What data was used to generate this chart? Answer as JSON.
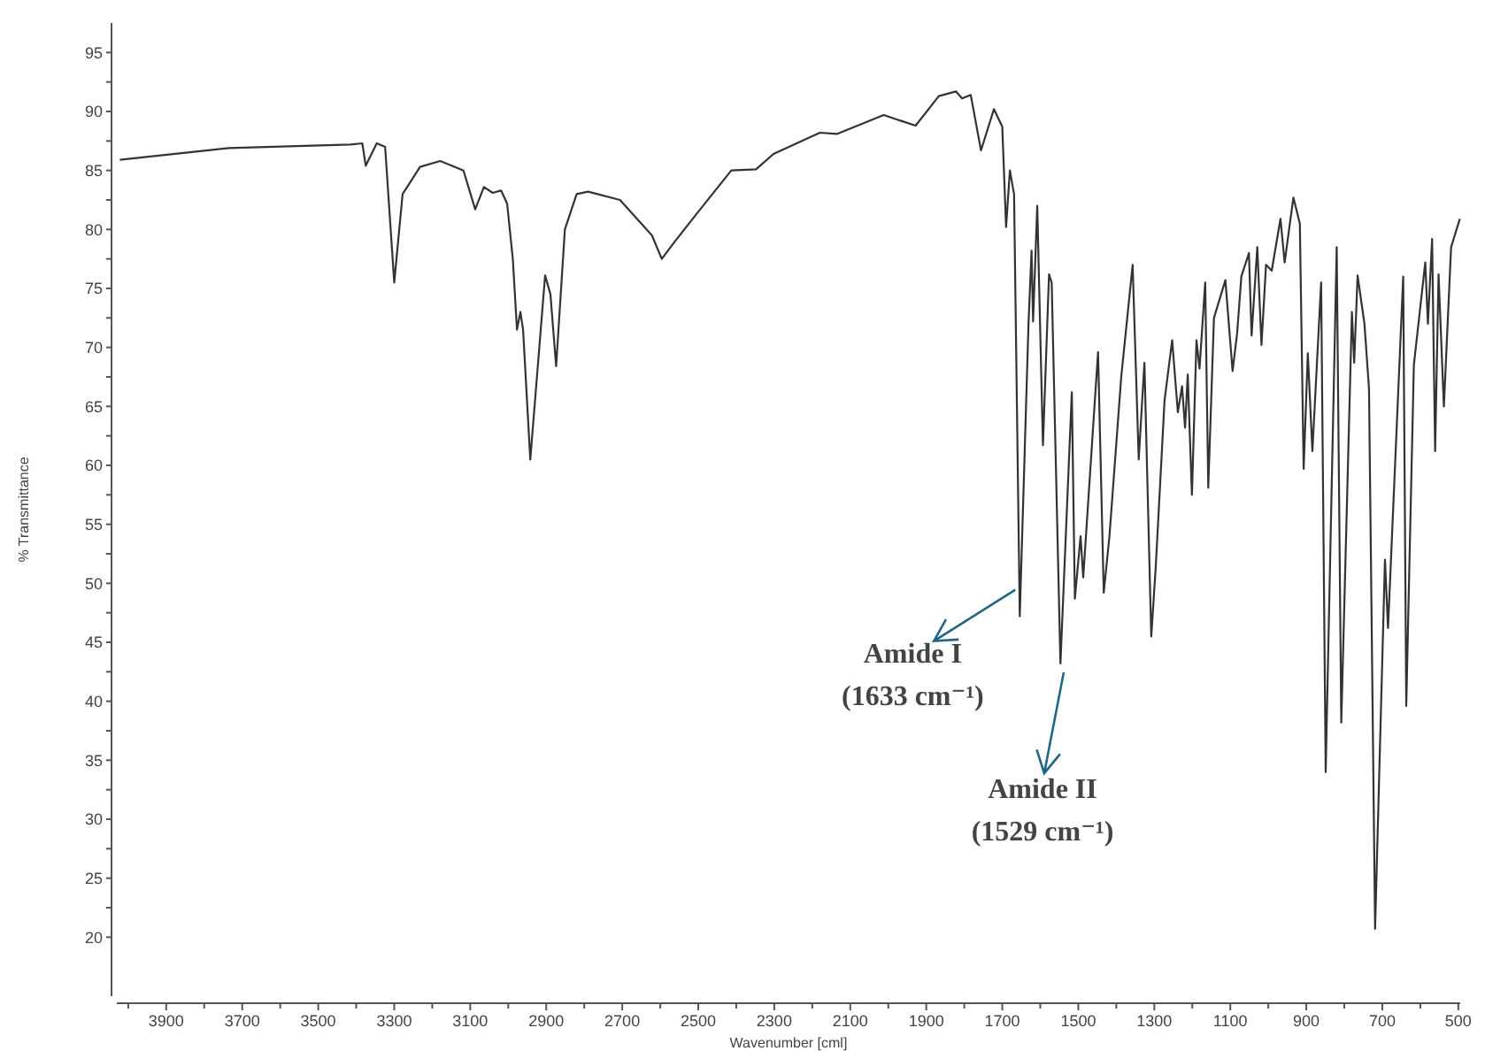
{
  "chart_data": {
    "type": "line",
    "xlabel": "Wavenumber [cml]",
    "ylabel": "% Transmittance",
    "xlim": [
      4030,
      495
    ],
    "ylim": [
      15,
      97.5
    ],
    "xticks": [
      {
        "value": 4000,
        "label": null
      },
      3900,
      {
        "value": 3800,
        "label": null
      },
      3700,
      {
        "value": 3600,
        "label": null
      },
      3500,
      {
        "value": 3400,
        "label": null
      },
      3300,
      {
        "value": 3200,
        "label": null
      },
      3100,
      {
        "value": 3000,
        "label": null
      },
      2900,
      {
        "value": 2800,
        "label": null
      },
      2700,
      {
        "value": 2600,
        "label": null
      },
      2500,
      {
        "value": 2400,
        "label": null
      },
      2300,
      {
        "value": 2200,
        "label": null
      },
      2100,
      {
        "value": 2000,
        "label": null
      },
      1900,
      {
        "value": 1800,
        "label": null
      },
      1700,
      {
        "value": 1600,
        "label": null
      },
      1500,
      {
        "value": 1400,
        "label": null
      },
      1300,
      {
        "value": 1200,
        "label": null
      },
      1100,
      {
        "value": 1000,
        "label": null
      },
      900,
      {
        "value": 800,
        "label": null
      },
      700,
      {
        "value": 600,
        "label": null
      },
      500
    ],
    "yticks": [
      20,
      25,
      30,
      35,
      40,
      45,
      50,
      55,
      60,
      65,
      70,
      75,
      80,
      85,
      90,
      95
    ],
    "grid": false,
    "marker": "none",
    "line_style": "solid",
    "series": [
      {
        "color": "#333333",
        "x": [
          4022,
          3735,
          3415,
          3384,
          3375,
          3346,
          3324,
          3300,
          3278,
          3232,
          3179,
          3118,
          3087,
          3064,
          3041,
          3019,
          3003,
          2988,
          2977,
          2968,
          2961,
          2942,
          2903,
          2889,
          2874,
          2851,
          2820,
          2790,
          2706,
          2622,
          2596,
          2561,
          2500,
          2413,
          2348,
          2302,
          2180,
          2134,
          2012,
          1966,
          1928,
          1867,
          1822,
          1806,
          1783,
          1756,
          1722,
          1700,
          1690,
          1680,
          1669,
          1654,
          1631,
          1623,
          1619,
          1608,
          1593,
          1577,
          1570,
          1547,
          1517,
          1509,
          1494,
          1487,
          1448,
          1433,
          1418,
          1387,
          1357,
          1341,
          1326,
          1308,
          1296,
          1273,
          1253,
          1238,
          1227,
          1219,
          1212,
          1201,
          1189,
          1181,
          1166,
          1158,
          1143,
          1113,
          1094,
          1082,
          1071,
          1051,
          1044,
          1029,
          1018,
          1006,
          991,
          968,
          957,
          934,
          917,
          907,
          896,
          884,
          861,
          849,
          820,
          808,
          780,
          774,
          765,
          747,
          735,
          719,
          693,
          685,
          645,
          637,
          617,
          587,
          580,
          569,
          561,
          552,
          538,
          519,
          496
        ],
        "values": [
          85.9,
          86.9,
          87.2,
          87.3,
          85.4,
          87.3,
          87.0,
          75.5,
          83.0,
          85.3,
          85.8,
          85.0,
          81.7,
          83.6,
          83.1,
          83.3,
          82.2,
          77.5,
          71.5,
          73.0,
          71.5,
          60.5,
          76.1,
          74.5,
          68.4,
          80.0,
          83.0,
          83.2,
          82.5,
          79.5,
          77.5,
          79.0,
          81.5,
          85.0,
          85.1,
          86.4,
          88.2,
          88.1,
          89.7,
          89.2,
          88.8,
          91.3,
          91.7,
          91.1,
          91.4,
          86.7,
          90.2,
          88.7,
          80.2,
          85.0,
          83.0,
          47.2,
          72.0,
          78.2,
          72.2,
          82.0,
          61.7,
          76.2,
          75.5,
          43.2,
          66.2,
          48.7,
          54.0,
          50.5,
          69.6,
          49.2,
          54.0,
          67.5,
          77.0,
          60.5,
          68.7,
          45.5,
          51.5,
          65.5,
          70.6,
          64.5,
          66.7,
          63.2,
          67.7,
          57.5,
          70.6,
          68.2,
          75.5,
          58.1,
          72.5,
          75.7,
          68.0,
          71.2,
          76.0,
          78.0,
          71.0,
          78.5,
          70.2,
          77.0,
          76.5,
          80.9,
          77.2,
          82.7,
          80.5,
          59.7,
          69.5,
          61.2,
          75.5,
          34.0,
          78.5,
          38.2,
          73.0,
          68.7,
          76.1,
          72.0,
          66.5,
          20.7,
          52.0,
          46.2,
          76.0,
          39.6,
          68.5,
          77.2,
          72.0,
          79.2,
          61.2,
          76.2,
          65.0,
          78.5,
          80.9
        ]
      }
    ],
    "annotations": [
      {
        "text": "Amide I (1633 cm⁻¹)",
        "x": 1633,
        "y": 47.2
      },
      {
        "text": "Amide II (1529 cm⁻¹)",
        "x": 1529,
        "y": 43.2
      }
    ]
  }
}
